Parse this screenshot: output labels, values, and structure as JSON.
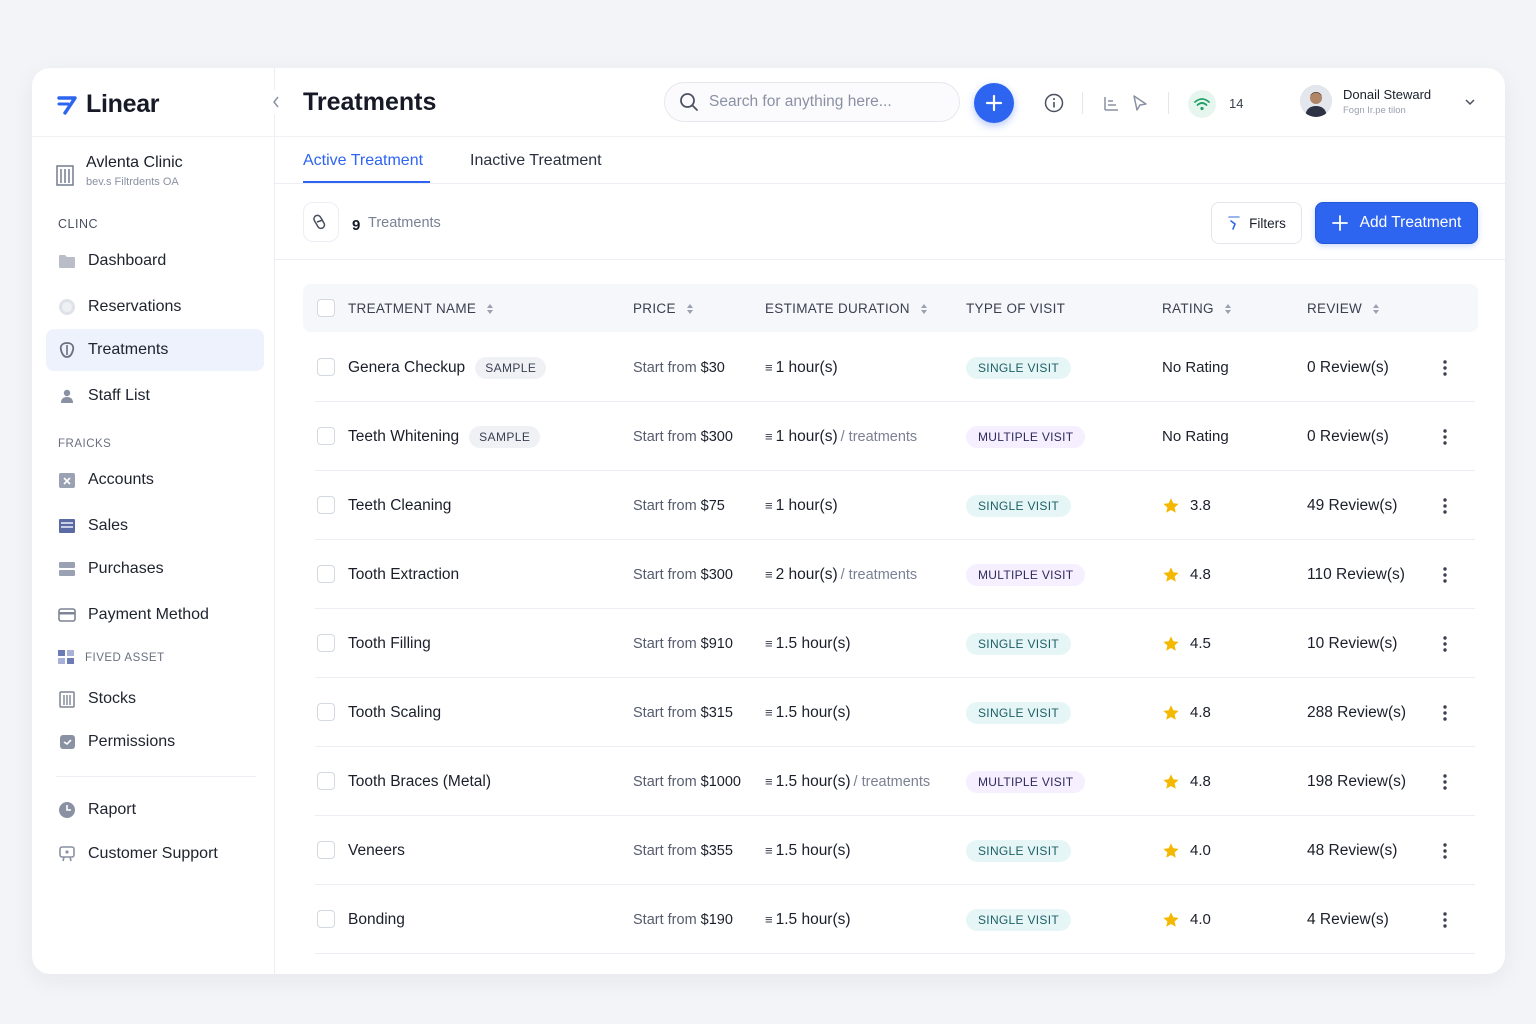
{
  "colors": {
    "accent": "#2d64f0",
    "single_visit_bg": "#e6f6f6",
    "multiple_visit_bg": "#f5efff",
    "star": "#f5b800",
    "wifi": "#22a066"
  },
  "app": {
    "name": "Linear"
  },
  "clinic": {
    "name": "Avlenta Clinic",
    "subtitle": "bev.s Filtrdents OA"
  },
  "sidebar": {
    "section_clinic": "CLINC",
    "section_finance": "FRAICKS",
    "section_asset": "FIVED ASSET",
    "clinic_items": [
      {
        "label": "Dashboard",
        "icon": "folder-icon"
      },
      {
        "label": "Reservations",
        "icon": "clock-icon"
      },
      {
        "label": "Treatments",
        "icon": "tooth-icon",
        "active": true
      },
      {
        "label": "Staff List",
        "icon": "user-icon"
      }
    ],
    "finance_items": [
      {
        "label": "Accounts",
        "icon": "accounts-icon"
      },
      {
        "label": "Sales",
        "icon": "sales-icon"
      },
      {
        "label": "Purchases",
        "icon": "purchases-icon"
      },
      {
        "label": "Payment Method",
        "icon": "card-icon"
      }
    ],
    "asset_items": [
      {
        "label": "Stocks",
        "icon": "stocks-icon"
      },
      {
        "label": "Permissions",
        "icon": "permissions-icon"
      }
    ],
    "bottom_items": [
      {
        "label": "Raport",
        "icon": "report-icon"
      },
      {
        "label": "Customer Support",
        "icon": "support-icon"
      }
    ]
  },
  "header": {
    "title": "Treatments",
    "search_placeholder": "Search for anything here...",
    "notification_count": "14",
    "user_name": "Donail Steward",
    "user_role": "Fogn Ir.pe tilon"
  },
  "tabs": [
    {
      "label": "Active Treatment",
      "active": true
    },
    {
      "label": "Inactive Treatment",
      "active": false
    }
  ],
  "toolbar": {
    "count": "9",
    "count_label": "Treatments",
    "filters_label": "Filters",
    "add_label": "Add Treatment"
  },
  "table": {
    "columns": [
      "TREATMENT NAME",
      "PRICE",
      "ESTIMATE DURATION",
      "TYPE OF VISIT",
      "RATING",
      "REVIEW"
    ],
    "price_prefix": "Start from",
    "rows": [
      {
        "name": "Genera Checkup",
        "tag": "SAMPLE",
        "price": "$30",
        "duration": "1 hour(s)",
        "duration_suffix": "",
        "visit": "SINGLE VISIT",
        "visit_type": "single",
        "rating": "No Rating",
        "has_star": false,
        "review": "0 Review(s)"
      },
      {
        "name": "Teeth Whitening",
        "tag": "SAMPLE",
        "price": "$300",
        "duration": "1 hour(s)",
        "duration_suffix": "/ treatments",
        "visit": "MULTIPLE VISIT",
        "visit_type": "multiple",
        "rating": "No Rating",
        "has_star": false,
        "review": "0 Review(s)"
      },
      {
        "name": "Teeth Cleaning",
        "tag": "",
        "price": "$75",
        "duration": "1 hour(s)",
        "duration_suffix": "",
        "visit": "SINGLE VISIT",
        "visit_type": "single",
        "rating": "3.8",
        "has_star": true,
        "review": "49 Review(s)"
      },
      {
        "name": "Tooth Extraction",
        "tag": "",
        "price": "$300",
        "duration": "2 hour(s)",
        "duration_suffix": "/ treatments",
        "visit": "MULTIPLE VISIT",
        "visit_type": "multiple",
        "rating": "4.8",
        "has_star": true,
        "review": "110 Review(s)"
      },
      {
        "name": "Tooth Filling",
        "tag": "",
        "price": "$910",
        "duration": "1.5 hour(s)",
        "duration_suffix": "",
        "visit": "SINGLE VISIT",
        "visit_type": "single",
        "rating": "4.5",
        "has_star": true,
        "review": "10 Review(s)"
      },
      {
        "name": "Tooth Scaling",
        "tag": "",
        "price": "$315",
        "duration": "1.5 hour(s)",
        "duration_suffix": "",
        "visit": "SINGLE VISIT",
        "visit_type": "single",
        "rating": "4.8",
        "has_star": true,
        "review": "288 Review(s)"
      },
      {
        "name": "Tooth Braces (Metal)",
        "tag": "",
        "price": "$1000",
        "duration": "1.5 hour(s)",
        "duration_suffix": "/ treatments",
        "visit": "MULTIPLE VISIT",
        "visit_type": "multiple",
        "rating": "4.8",
        "has_star": true,
        "review": "198 Review(s)"
      },
      {
        "name": "Veneers",
        "tag": "",
        "price": "$355",
        "duration": "1.5 hour(s)",
        "duration_suffix": "",
        "visit": "SINGLE VISIT",
        "visit_type": "single",
        "rating": "4.0",
        "has_star": true,
        "review": "48 Review(s)"
      },
      {
        "name": "Bonding",
        "tag": "",
        "price": "$190",
        "duration": "1.5 hour(s)",
        "duration_suffix": "",
        "visit": "SINGLE VISIT",
        "visit_type": "single",
        "rating": "4.0",
        "has_star": true,
        "review": "4 Review(s)"
      }
    ]
  }
}
